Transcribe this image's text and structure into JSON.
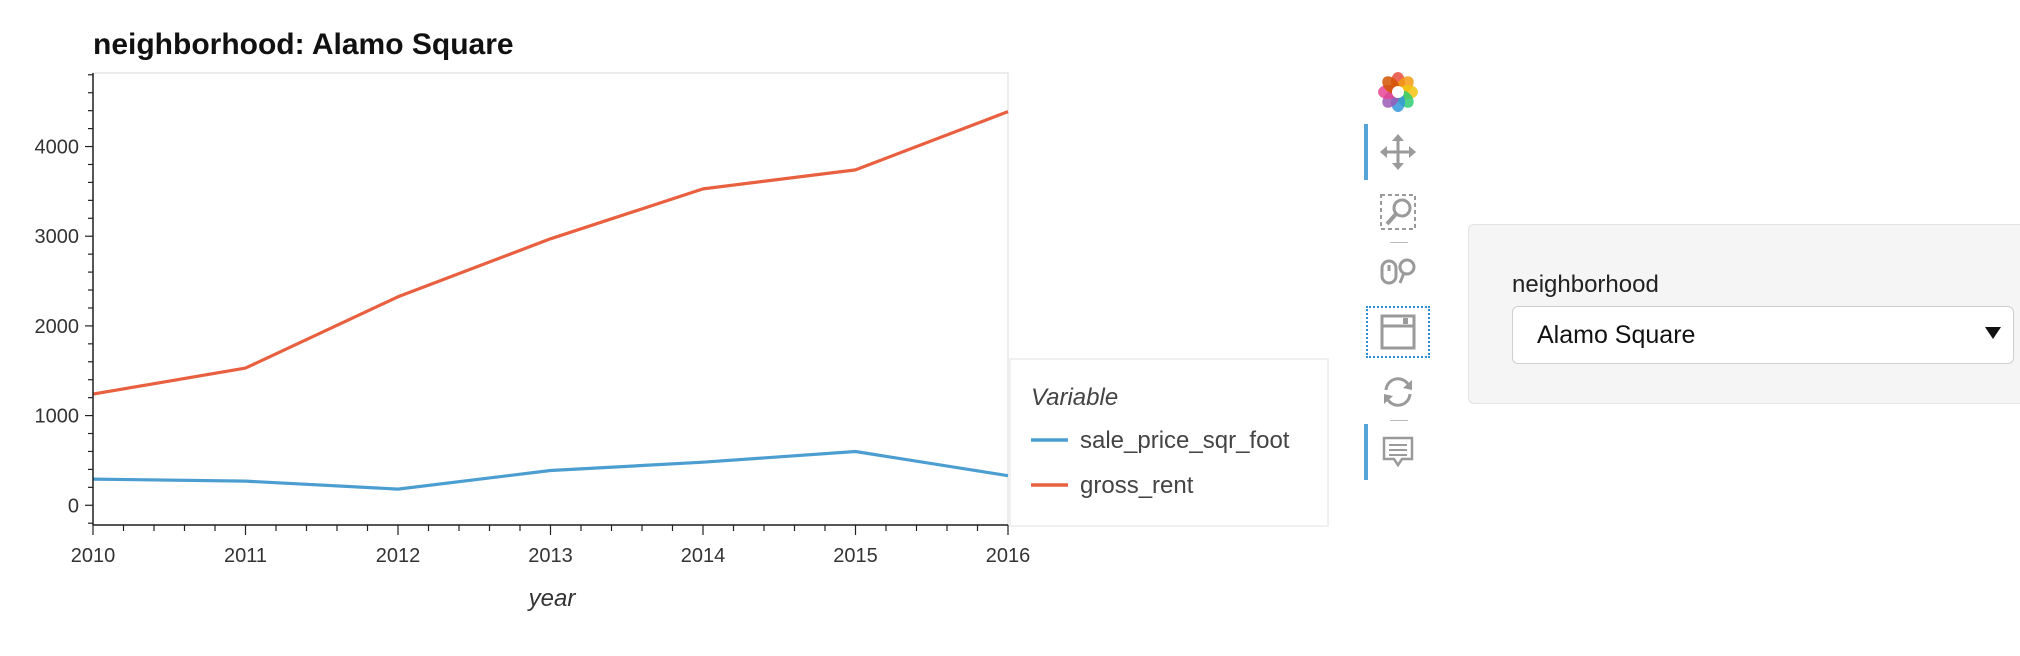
{
  "chart_data": {
    "type": "line",
    "title": "neighborhood: Alamo Square",
    "xlabel": "year",
    "ylabel": "",
    "x": [
      2010,
      2011,
      2012,
      2013,
      2014,
      2015,
      2016
    ],
    "xticks": [
      "2010",
      "2011",
      "2012",
      "2013",
      "2014",
      "2015",
      "2016"
    ],
    "yticks": [
      "0",
      "1000",
      "2000",
      "3000",
      "4000"
    ],
    "xlim": [
      2010,
      2016
    ],
    "ylim": [
      -220,
      4820
    ],
    "legend_title": "Variable",
    "legend_position": "right",
    "grid": false,
    "series": [
      {
        "name": "sale_price_sqr_foot",
        "color": "#4c9ed1",
        "values": [
          292,
          270,
          180,
          388,
          480,
          600,
          330
        ]
      },
      {
        "name": "gross_rent",
        "color": "#e8603f",
        "values": [
          1240,
          1530,
          2324,
          2971,
          3528,
          3739,
          4390
        ]
      }
    ]
  },
  "toolbar": {
    "tools": [
      {
        "name": "bokeh-logo-icon",
        "active": false
      },
      {
        "name": "pan-tool-icon",
        "active": true
      },
      {
        "name": "box-zoom-tool-icon",
        "active": false
      },
      {
        "name": "wheel-zoom-tool-icon",
        "active": false
      },
      {
        "name": "save-tool-icon",
        "active": false
      },
      {
        "name": "reset-tool-icon",
        "active": false
      },
      {
        "name": "hover-tool-icon",
        "active": true
      }
    ]
  },
  "widget": {
    "label": "neighborhood",
    "selected": "Alamo Square"
  }
}
